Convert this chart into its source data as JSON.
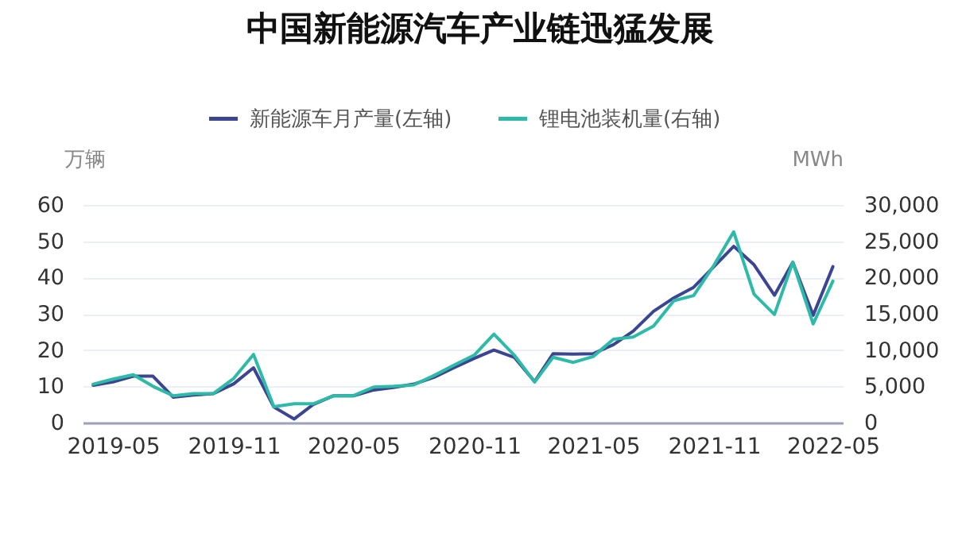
{
  "chart_data": {
    "type": "line",
    "title": "中国新能源汽车产业链迅猛发展",
    "ylabel": "万辆",
    "y2label": "MWh",
    "x": [
      "2019-04",
      "2019-05",
      "2019-06",
      "2019-07",
      "2019-08",
      "2019-09",
      "2019-10",
      "2019-11",
      "2019-12",
      "2020-01",
      "2020-02",
      "2020-03",
      "2020-04",
      "2020-05",
      "2020-06",
      "2020-07",
      "2020-08",
      "2020-09",
      "2020-10",
      "2020-11",
      "2020-12",
      "2021-01",
      "2021-02",
      "2021-03",
      "2021-04",
      "2021-05",
      "2021-06",
      "2021-07",
      "2021-08",
      "2021-09",
      "2021-10",
      "2021-11",
      "2021-12",
      "2022-01",
      "2022-02",
      "2022-03",
      "2022-04",
      "2022-05"
    ],
    "series": [
      {
        "name": "新能源车月产量(左轴)",
        "color": "#3c4592",
        "values": [
          10.3,
          11.2,
          12.8,
          12.8,
          7.0,
          7.6,
          8.0,
          10.7,
          15.1,
          4.3,
          1.0,
          5.0,
          7.4,
          7.4,
          9.0,
          9.7,
          10.6,
          12.5,
          15.1,
          17.7,
          20.0,
          18.0,
          11.3,
          19.0,
          18.9,
          19.0,
          21.5,
          25.2,
          30.7,
          34.4,
          37.3,
          43.0,
          48.6,
          43.5,
          35.1,
          44.2,
          29.6,
          43.0
        ]
      },
      {
        "name": "锂电池装机量(右轴)",
        "color": "#2ebaa8",
        "axis": "y2",
        "values": [
          5300,
          6000,
          6600,
          5000,
          3700,
          4000,
          4000,
          6100,
          9400,
          2200,
          2600,
          2600,
          3700,
          3700,
          4900,
          5000,
          5200,
          6500,
          7900,
          9300,
          12200,
          9300,
          5600,
          9000,
          8300,
          9100,
          11500,
          11800,
          13300,
          16800,
          17500,
          21700,
          26300,
          17700,
          14900,
          22100,
          13600,
          19500
        ]
      }
    ],
    "xlim": [
      "2019-03-16",
      "2022-05-16"
    ],
    "xticks": [
      "2019-05",
      "2019-11",
      "2020-05",
      "2020-11",
      "2021-05",
      "2021-11",
      "2022-05"
    ],
    "ylim": [
      0,
      60
    ],
    "yticks": [
      0,
      10,
      20,
      30,
      40,
      50,
      60
    ],
    "y2lim": [
      0,
      30000
    ],
    "y2ticks": [
      0,
      {
        "value": 5000,
        "label": "5,000"
      },
      {
        "value": 10000,
        "label": "10,000"
      },
      {
        "value": 15000,
        "label": "15,000"
      },
      {
        "value": 20000,
        "label": "20,000"
      },
      {
        "value": 25000,
        "label": "25,000"
      },
      {
        "value": 30000,
        "label": "30,000"
      }
    ],
    "grid": "y",
    "legend": "top",
    "marker": "none",
    "line_style": "solid"
  }
}
